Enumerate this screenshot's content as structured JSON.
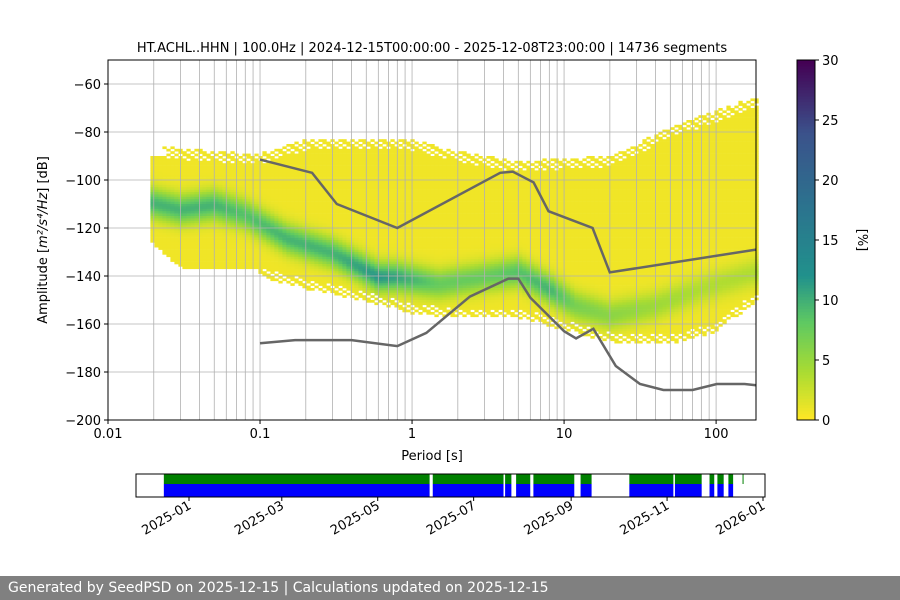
{
  "chart_data": {
    "type": "heatmap",
    "title": "HT.ACHL..HHN | 100.0Hz | 2024-12-15T00:00:00 - 2025-12-08T23:00:00 | 14736 segments",
    "xlabel": "Period [s]",
    "ylabel_pre": "Amplitude [",
    "ylabel_math": "m²/s⁴/Hz",
    "ylabel_post": "] [dB]",
    "xscale": "log",
    "xlim": [
      0.01,
      183
    ],
    "ylim": [
      -200,
      -50
    ],
    "x_ticks": [
      {
        "v": 0.01,
        "l": "0.01"
      },
      {
        "v": 0.1,
        "l": "0.1"
      },
      {
        "v": 1,
        "l": "1"
      },
      {
        "v": 10,
        "l": "10"
      },
      {
        "v": 100,
        "l": "100"
      }
    ],
    "y_ticks": [
      -200,
      -180,
      -160,
      -140,
      -120,
      -100,
      -80,
      -60
    ],
    "grid": true,
    "colorbar": {
      "label": "[%]",
      "range": [
        0,
        30
      ],
      "ticks": [
        0,
        5,
        10,
        15,
        20,
        25,
        30
      ]
    },
    "density_model": {
      "mode_period": [
        0.019,
        0.03,
        0.05,
        0.08,
        0.15,
        0.3,
        0.6,
        0.8,
        1.5,
        3,
        5,
        8,
        12,
        20,
        40,
        80,
        183
      ],
      "mode_db": [
        -109,
        -112,
        -110,
        -114,
        -124,
        -130,
        -140,
        -140,
        -143,
        -140,
        -138,
        -145,
        -152,
        -156,
        -152,
        -145,
        -138
      ],
      "peak_percent": [
        9,
        9,
        9,
        8,
        9,
        9,
        11,
        10,
        7,
        7,
        8,
        9,
        6,
        5,
        4,
        3,
        3
      ],
      "upper_period": [
        0.019,
        0.03,
        0.1,
        0.2,
        1,
        2,
        5,
        20,
        50,
        183
      ],
      "upper_db": [
        -85,
        -87,
        -89,
        -83,
        -83,
        -88,
        -92,
        -90,
        -78,
        -65
      ],
      "lower_period": [
        0.019,
        0.03,
        0.1,
        0.2,
        0.5,
        1,
        2,
        5,
        20,
        50,
        100,
        183
      ],
      "lower_db": [
        -129,
        -140,
        -140,
        -145,
        -150,
        -155,
        -157,
        -157,
        -167,
        -168,
        -163,
        -150
      ]
    },
    "series": [
      {
        "name": "NHNM",
        "color": "#666666",
        "x": [
          0.1,
          0.22,
          0.32,
          0.8,
          3.8,
          4.6,
          6.3,
          7.9,
          15.4,
          20,
          183
        ],
        "y": [
          -91.5,
          -97,
          -110,
          -120,
          -97,
          -96.5,
          -101,
          -113,
          -120,
          -138.5,
          -129
        ]
      },
      {
        "name": "NLNM",
        "color": "#666666",
        "x": [
          0.1,
          0.17,
          0.4,
          0.8,
          1.24,
          2.4,
          4.3,
          5.0,
          6.0,
          10,
          12,
          15.6,
          21.9,
          31.6,
          45,
          70,
          101,
          154,
          183
        ],
        "y": [
          -168,
          -166.7,
          -166.7,
          -169.2,
          -163.7,
          -148.6,
          -141.1,
          -141.1,
          -149,
          -163,
          -166,
          -162,
          -177.5,
          -185,
          -187.5,
          -187.5,
          -185,
          -185,
          -185.5
        ]
      }
    ],
    "coverage": {
      "x_ticks": [
        "2025-01",
        "2025-03",
        "2025-05",
        "2025-07",
        "2025-09",
        "2025-11",
        "2026-01"
      ],
      "colors": {
        "top": "#008000",
        "bottom": "#0000ff"
      },
      "intervals": [
        [
          "2024-12-16",
          "2025-06-03"
        ],
        [
          "2025-06-05",
          "2025-07-20"
        ],
        [
          "2025-07-21",
          "2025-07-25"
        ],
        [
          "2025-07-28",
          "2025-08-06"
        ],
        [
          "2025-08-08",
          "2025-09-03"
        ],
        [
          "2025-09-07",
          "2025-09-14"
        ],
        [
          "2025-10-08",
          "2025-11-05"
        ],
        [
          "2025-11-06",
          "2025-11-23"
        ],
        [
          "2025-11-28",
          "2025-12-01"
        ],
        [
          "2025-12-03",
          "2025-12-07"
        ],
        [
          "2025-12-10",
          "2025-12-13"
        ]
      ],
      "top_only_ticks": [
        "2025-12-19"
      ]
    }
  },
  "footer": "Generated by SeedPSD on 2025-12-15 | Calculations updated on 2025-12-15"
}
